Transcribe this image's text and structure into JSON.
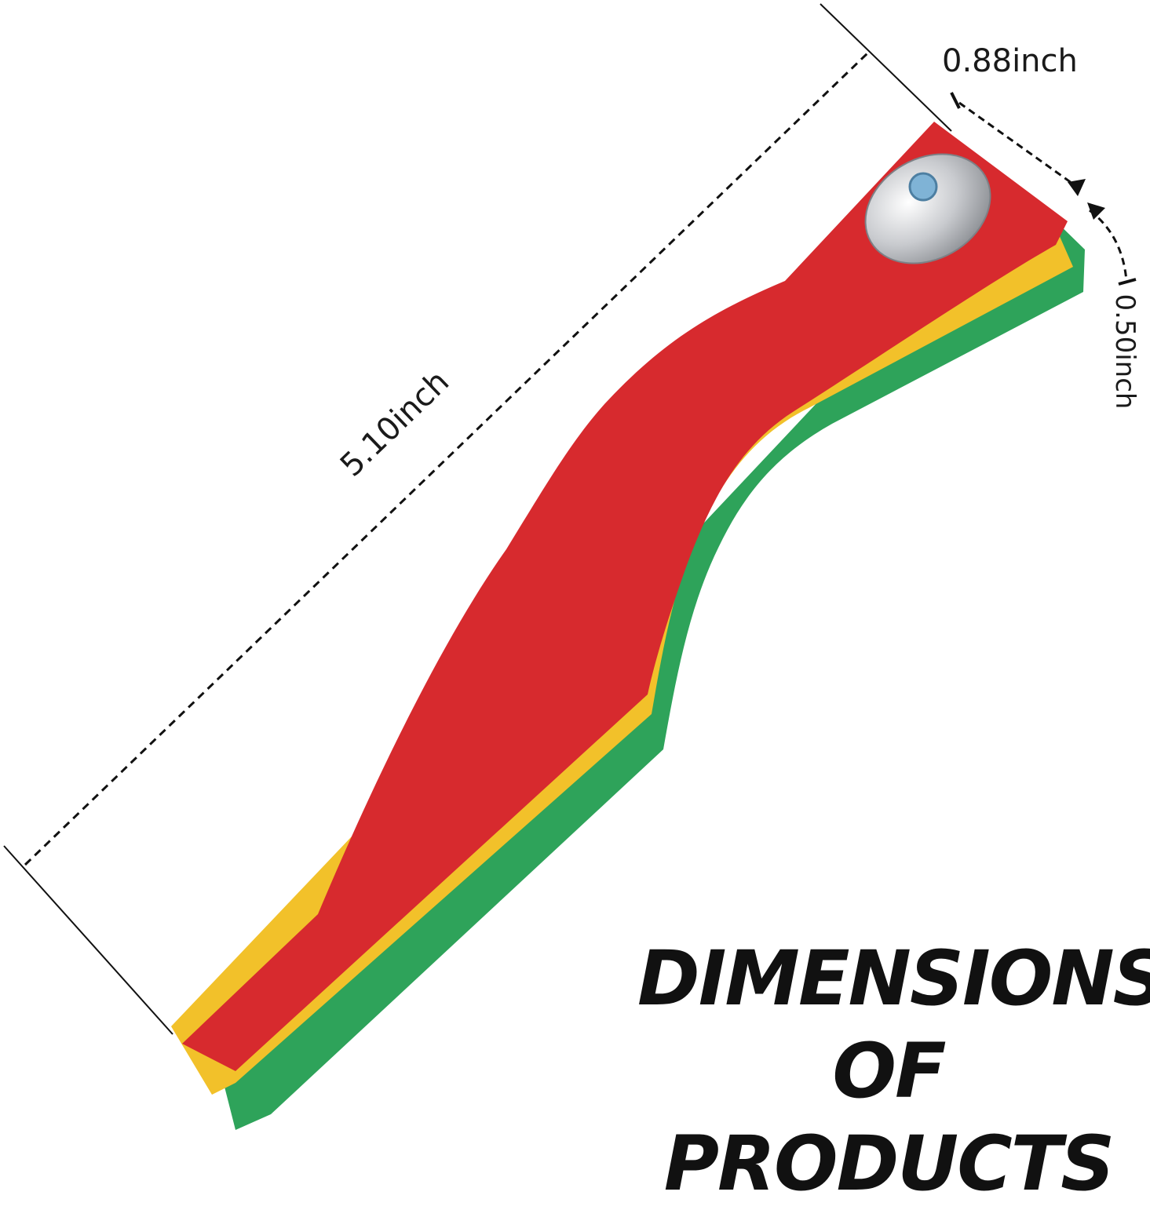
{
  "dimensions": {
    "width": "0.88inch",
    "length": "5.10inch",
    "thickness": "0.50inch"
  },
  "headline": {
    "line1": "DIMENSIONS",
    "line2": "OF PRODUCTS"
  },
  "colors": {
    "red": "#d72a2e",
    "yellow": "#f2c12a",
    "green": "#2ea35a",
    "text": "#111111",
    "background": "#ffffff"
  }
}
